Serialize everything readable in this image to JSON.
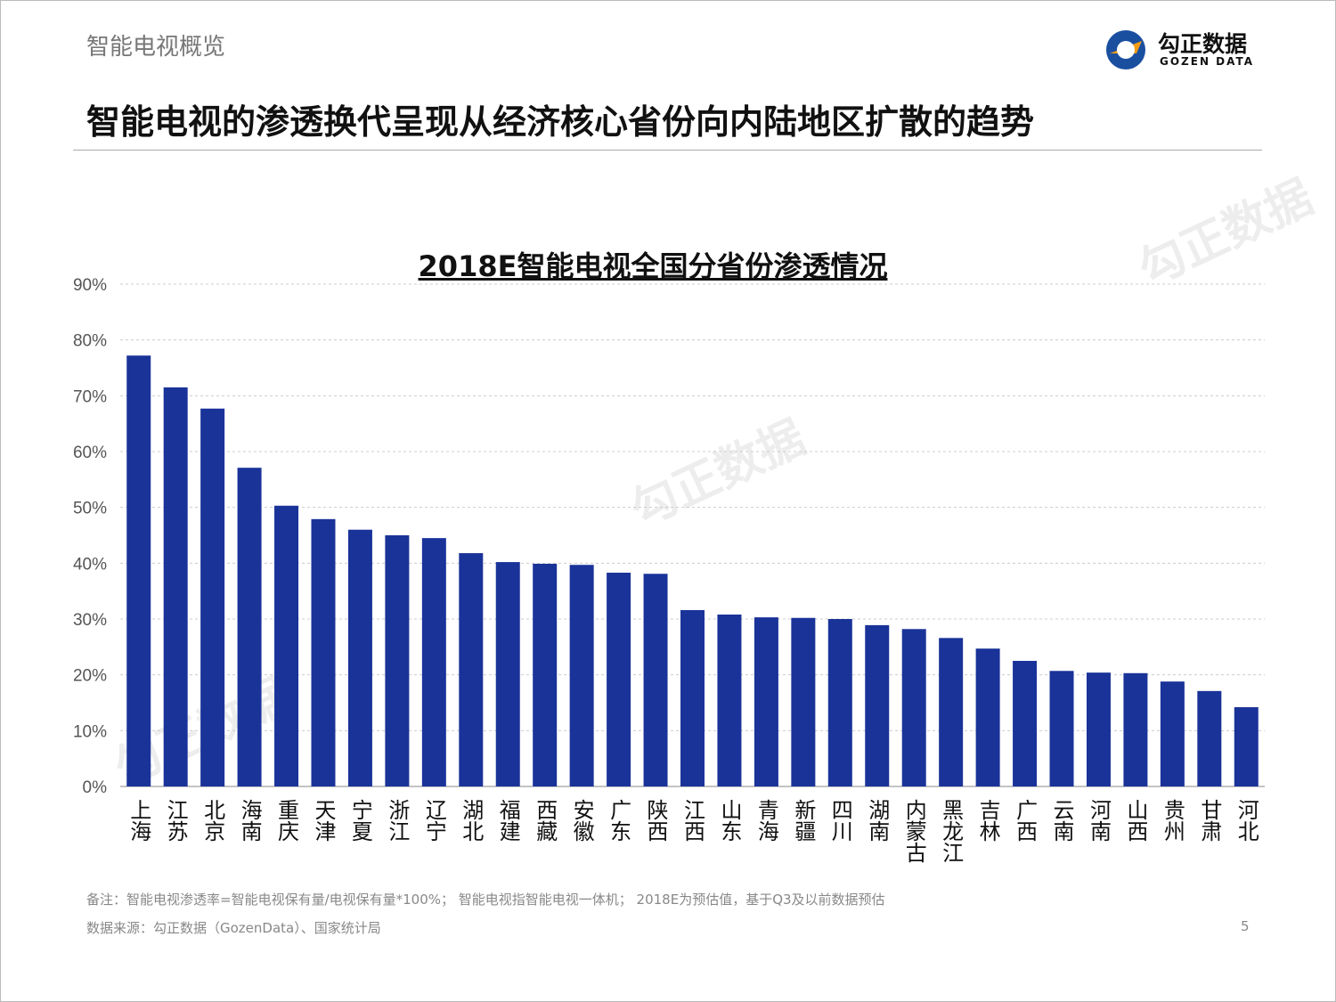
{
  "header": {
    "section": "智能电视概览",
    "headline": "智能电视的渗透换代呈现从经济核心省份向内陆地区扩散的趋势"
  },
  "logo": {
    "cn": "勾正数据",
    "en": "GOZEN DATA"
  },
  "watermark": {
    "cn": "勾正数据",
    "en": "GOZEN DATA"
  },
  "chart_data": {
    "type": "bar",
    "title": "2018E智能电视全国分省份渗透情况",
    "xlabel": "",
    "ylabel": "",
    "ylim": [
      0,
      90
    ],
    "yticks": [
      "0%",
      "10%",
      "20%",
      "30%",
      "40%",
      "50%",
      "60%",
      "70%",
      "80%",
      "90%"
    ],
    "grid": true,
    "bar_color": "#1a3399",
    "categories": [
      "上海",
      "江苏",
      "北京",
      "海南",
      "重庆",
      "天津",
      "宁夏",
      "浙江",
      "辽宁",
      "湖北",
      "福建",
      "西藏",
      "安徽",
      "广东",
      "陕西",
      "江西",
      "山东",
      "青海",
      "新疆",
      "四川",
      "湖南",
      "内蒙古",
      "黑龙江",
      "吉林",
      "广西",
      "云南",
      "河南",
      "山西",
      "贵州",
      "甘肃",
      "河北"
    ],
    "values": [
      77.2,
      71.5,
      67.7,
      57.1,
      50.3,
      47.9,
      46.0,
      45.0,
      44.5,
      41.8,
      40.2,
      39.9,
      39.7,
      38.3,
      38.1,
      31.6,
      30.8,
      30.3,
      30.2,
      30.0,
      28.9,
      28.2,
      26.6,
      24.7,
      22.5,
      20.7,
      20.4,
      20.3,
      18.8,
      17.1,
      14.2
    ]
  },
  "footer": {
    "note": "备注：智能电视渗透率=智能电视保有量/电视保有量*100%；  智能电视指智能电视一体机；  2018E为预估值，基于Q3及以前数据预估",
    "source": "数据来源：勾正数据（GozenData）、国家统计局",
    "page": "5"
  }
}
